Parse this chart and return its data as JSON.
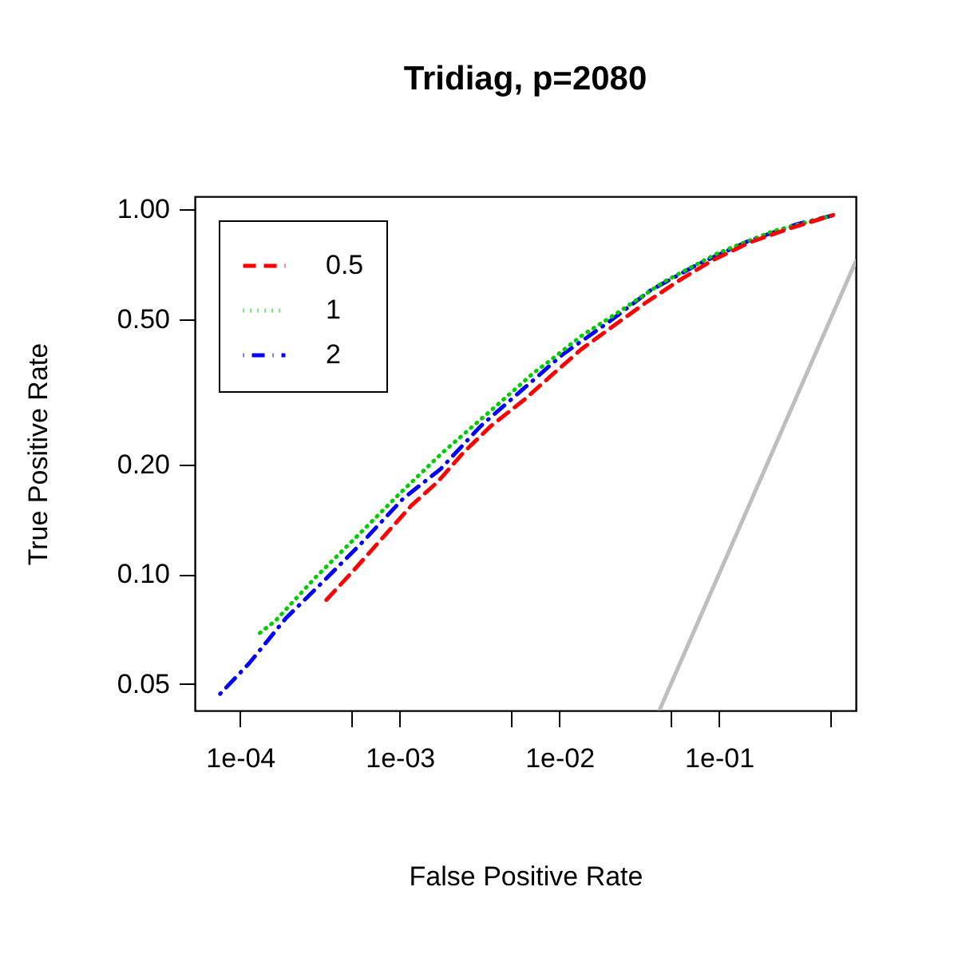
{
  "chart_data": {
    "type": "line",
    "title": "Tridiag, p=2080",
    "xlabel": "False Positive Rate",
    "ylabel": "True Positive Rate",
    "log": "xy",
    "grid": false,
    "legend": "top left",
    "marker": "none",
    "xlim": [
      5.2e-05,
      0.72
    ],
    "ylim": [
      0.0423,
      1.084
    ],
    "xticks": [
      {
        "value": 0.0001,
        "label": "1e-04"
      },
      {
        "value": 0.0005,
        "label": null
      },
      {
        "value": 0.001,
        "label": "1e-03"
      },
      {
        "value": 0.005,
        "label": null
      },
      {
        "value": 0.01,
        "label": "1e-02"
      },
      {
        "value": 0.05,
        "label": null
      },
      {
        "value": 0.1,
        "label": "1e-01"
      },
      {
        "value": 0.5,
        "label": null
      }
    ],
    "yticks": [
      0.05,
      {
        "value": 0.1,
        "label": "0.10"
      },
      {
        "value": 0.2,
        "label": "0.20"
      },
      {
        "value": 0.5,
        "label": "0.50"
      },
      {
        "value": 1,
        "label": "1.00"
      }
    ],
    "series": [
      {
        "name": "0.5",
        "color": "#ff0000",
        "line_style": "dashed",
        "x": [
          0.000347,
          0.0005,
          0.00081,
          0.00118,
          0.00173,
          0.0025,
          0.0037,
          0.006,
          0.0089,
          0.0138,
          0.022,
          0.0347,
          0.057,
          0.091,
          0.155,
          0.266,
          0.52
        ],
        "values": [
          0.085,
          0.101,
          0.128,
          0.154,
          0.179,
          0.215,
          0.254,
          0.3,
          0.35,
          0.414,
          0.48,
          0.554,
          0.64,
          0.724,
          0.81,
          0.88,
          0.964
        ]
      },
      {
        "name": "1",
        "color": "#00cd00",
        "line_style": "dotted",
        "x": [
          0.000133,
          0.000167,
          0.000297,
          0.00055,
          0.00101,
          0.00187,
          0.0036,
          0.0069,
          0.0087,
          0.0138,
          0.0228,
          0.0456,
          0.098,
          0.219,
          0.51
        ],
        "values": [
          0.069,
          0.0746,
          0.098,
          0.128,
          0.167,
          0.216,
          0.277,
          0.356,
          0.384,
          0.45,
          0.518,
          0.634,
          0.757,
          0.871,
          0.96
        ]
      },
      {
        "name": "2",
        "color": "#0000ff",
        "line_style": "dotdash",
        "x": [
          7.5e-05,
          0.000114,
          0.000195,
          0.00032,
          0.00057,
          0.00105,
          0.0018,
          0.0032,
          0.0062,
          0.0105,
          0.0203,
          0.0374,
          0.0746,
          0.155,
          0.31,
          0.51
        ],
        "values": [
          0.047,
          0.057,
          0.076,
          0.094,
          0.121,
          0.161,
          0.194,
          0.254,
          0.327,
          0.4,
          0.49,
          0.6,
          0.708,
          0.82,
          0.91,
          0.96
        ]
      },
      {
        "color": "#bebebe",
        "line_style": "solid",
        "x": [
          0.0423,
          0.72
        ],
        "values": [
          0.0423,
          0.72
        ]
      }
    ]
  }
}
